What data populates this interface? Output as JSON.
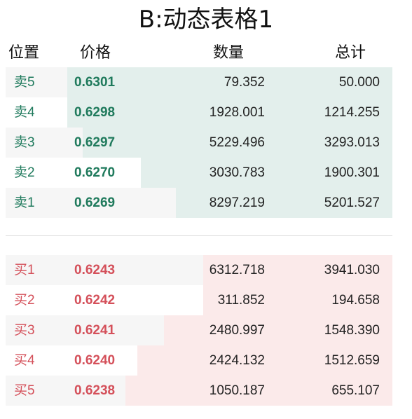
{
  "title": "B:动态表格1",
  "headers": {
    "position": "位置",
    "price": "价格",
    "quantity": "数量",
    "total": "总计"
  },
  "colors": {
    "sell_text": "#1f7a5c",
    "buy_text": "#d4505a",
    "sell_depth": "#e3efec",
    "buy_depth": "#fbeaea",
    "stripe": "#f6f6f6"
  },
  "sells": [
    {
      "position": "卖5",
      "price": "0.6301",
      "quantity": "79.352",
      "total": "50.000",
      "depth": 0.84
    },
    {
      "position": "卖4",
      "price": "0.6298",
      "quantity": "1928.001",
      "total": "1214.255",
      "depth": 0.84
    },
    {
      "position": "卖3",
      "price": "0.6297",
      "quantity": "5229.496",
      "total": "3293.013",
      "depth": 0.8
    },
    {
      "position": "卖2",
      "price": "0.6270",
      "quantity": "3030.783",
      "total": "1900.301",
      "depth": 0.65
    },
    {
      "position": "卖1",
      "price": "0.6269",
      "quantity": "8297.219",
      "total": "5201.527",
      "depth": 0.56
    }
  ],
  "buys": [
    {
      "position": "买1",
      "price": "0.6243",
      "quantity": "6312.718",
      "total": "3941.030",
      "depth": 0.49
    },
    {
      "position": "买2",
      "price": "0.6242",
      "quantity": "311.852",
      "total": "194.658",
      "depth": 0.49
    },
    {
      "position": "买3",
      "price": "0.6241",
      "quantity": "2480.997",
      "total": "1548.390",
      "depth": 0.59
    },
    {
      "position": "买4",
      "price": "0.6240",
      "quantity": "2424.132",
      "total": "1512.659",
      "depth": 0.66
    },
    {
      "position": "买5",
      "price": "0.6238",
      "quantity": "1050.187",
      "total": "655.107",
      "depth": 0.69
    }
  ]
}
